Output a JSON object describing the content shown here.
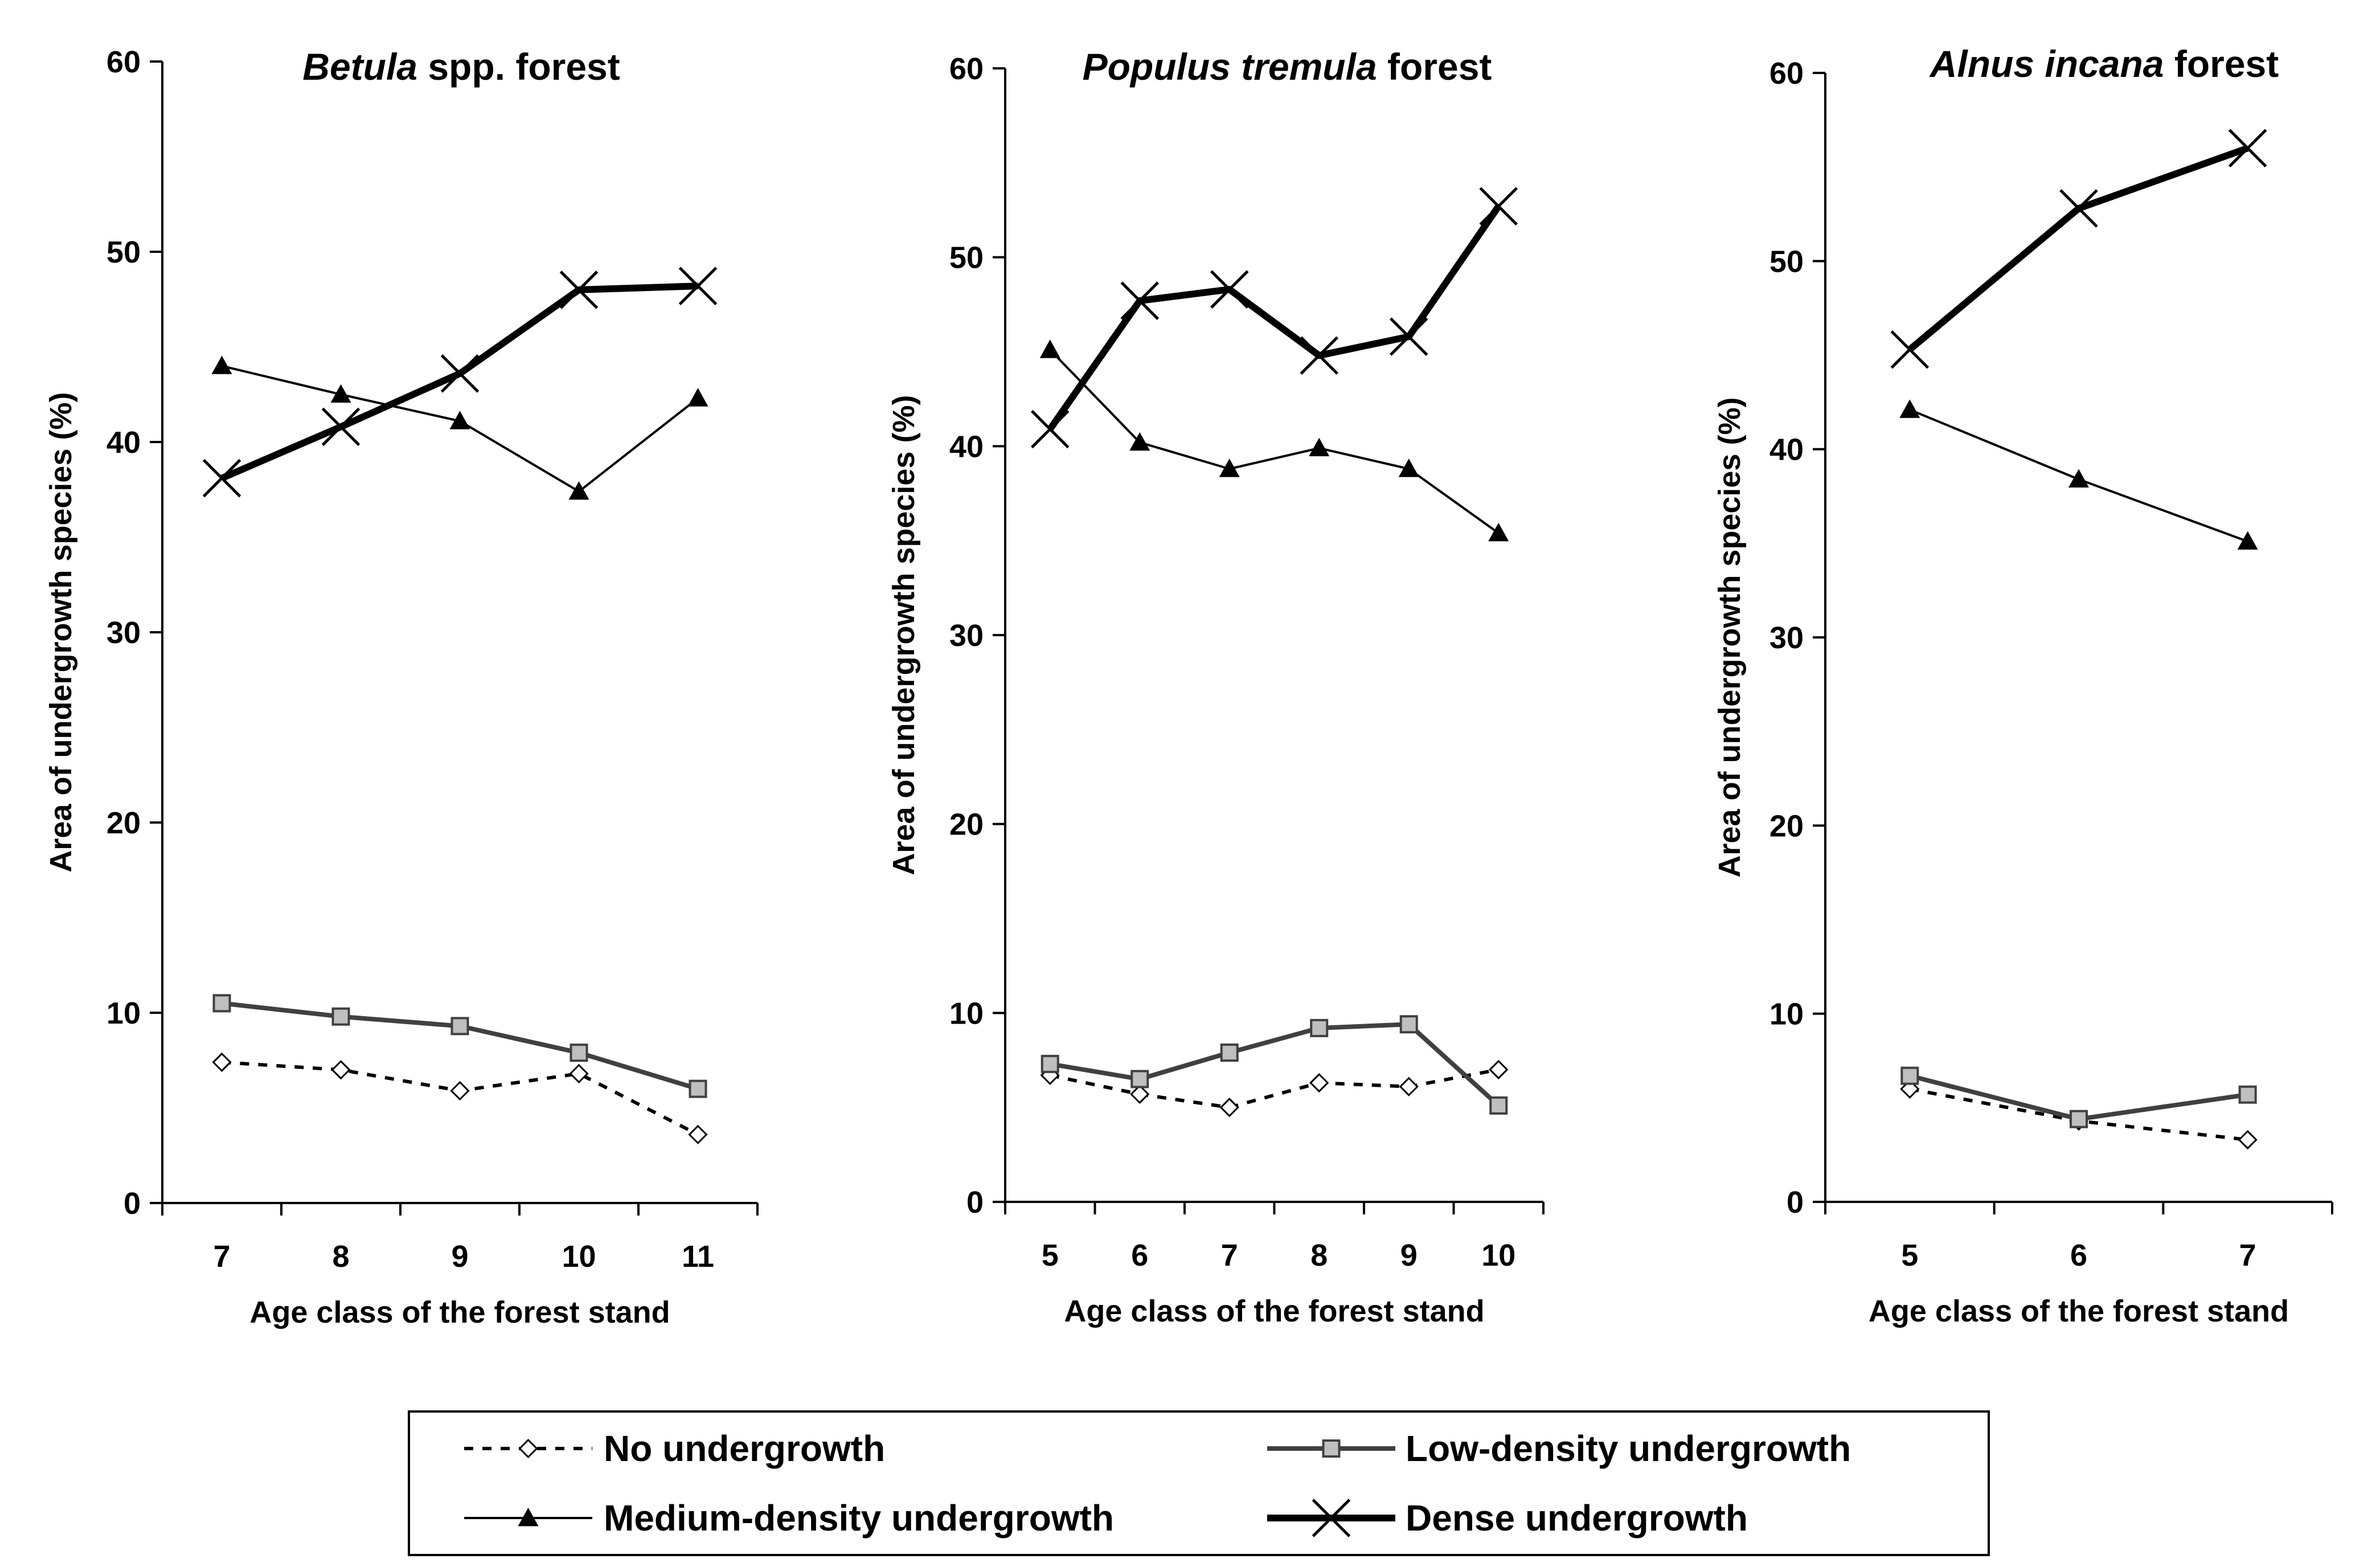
{
  "chart_data": [
    {
      "type": "line",
      "title_italic": "Betula",
      "title_rest": " spp. forest",
      "xlabel": "Age class of the forest stand",
      "ylabel": "Area of undergrowth species (%)",
      "ylim": [
        0,
        60
      ],
      "yticks": [
        0,
        10,
        20,
        30,
        40,
        50,
        60
      ],
      "categories": [
        "7",
        "8",
        "9",
        "10",
        "11"
      ],
      "series": [
        {
          "key": "none",
          "values": [
            7.4,
            7.0,
            5.9,
            6.8,
            3.6
          ]
        },
        {
          "key": "low",
          "values": [
            10.5,
            9.8,
            9.3,
            7.9,
            6.0
          ]
        },
        {
          "key": "medium",
          "values": [
            44.0,
            42.5,
            41.1,
            37.4,
            42.3
          ]
        },
        {
          "key": "dense",
          "values": [
            38.1,
            40.8,
            43.6,
            48.0,
            48.2
          ]
        }
      ]
    },
    {
      "type": "line",
      "title_italic": "Populus tremula",
      "title_rest": " forest",
      "xlabel": "Age class of the forest stand",
      "ylabel": "Area of undergrowth species (%)",
      "ylim": [
        0,
        60
      ],
      "yticks": [
        0,
        10,
        20,
        30,
        40,
        50,
        60
      ],
      "categories": [
        "5",
        "6",
        "7",
        "8",
        "9",
        "10"
      ],
      "series": [
        {
          "key": "none",
          "values": [
            6.7,
            5.7,
            5.0,
            6.3,
            6.1,
            7.0
          ]
        },
        {
          "key": "low",
          "values": [
            7.3,
            6.5,
            7.9,
            9.2,
            9.4,
            5.1
          ]
        },
        {
          "key": "medium",
          "values": [
            45.1,
            40.2,
            38.8,
            39.9,
            38.8,
            35.4
          ]
        },
        {
          "key": "dense",
          "values": [
            40.9,
            47.7,
            48.3,
            44.8,
            45.8,
            52.7
          ]
        }
      ]
    },
    {
      "type": "line",
      "title_italic": "Alnus incana",
      "title_rest": "  forest",
      "xlabel": "Age class of the forest stand",
      "ylabel": "Area of undergrowth species (%)",
      "ylim": [
        0,
        60
      ],
      "yticks": [
        0,
        10,
        20,
        30,
        40,
        50,
        60
      ],
      "categories": [
        "5",
        "6",
        "7"
      ],
      "series": [
        {
          "key": "none",
          "values": [
            6.0,
            4.3,
            3.3
          ]
        },
        {
          "key": "low",
          "values": [
            6.7,
            4.4,
            5.7
          ]
        },
        {
          "key": "medium",
          "values": [
            42.1,
            38.4,
            35.1
          ]
        },
        {
          "key": "dense",
          "values": [
            45.3,
            52.8,
            56.0
          ]
        }
      ]
    }
  ],
  "legend": {
    "position": "bottom-center",
    "entries": [
      {
        "key": "none",
        "label": "No undergrowth",
        "style": "dashed",
        "marker": "diamond",
        "color": "#000000"
      },
      {
        "key": "low",
        "label": "Low-density undergrowth",
        "style": "solid-medium",
        "marker": "square",
        "color": "#404040"
      },
      {
        "key": "medium",
        "label": "Medium-density undergrowth",
        "style": "solid-thin",
        "marker": "triangle",
        "color": "#000000"
      },
      {
        "key": "dense",
        "label": "Dense undergrowth",
        "style": "solid-thick",
        "marker": "x",
        "color": "#000000"
      }
    ]
  }
}
